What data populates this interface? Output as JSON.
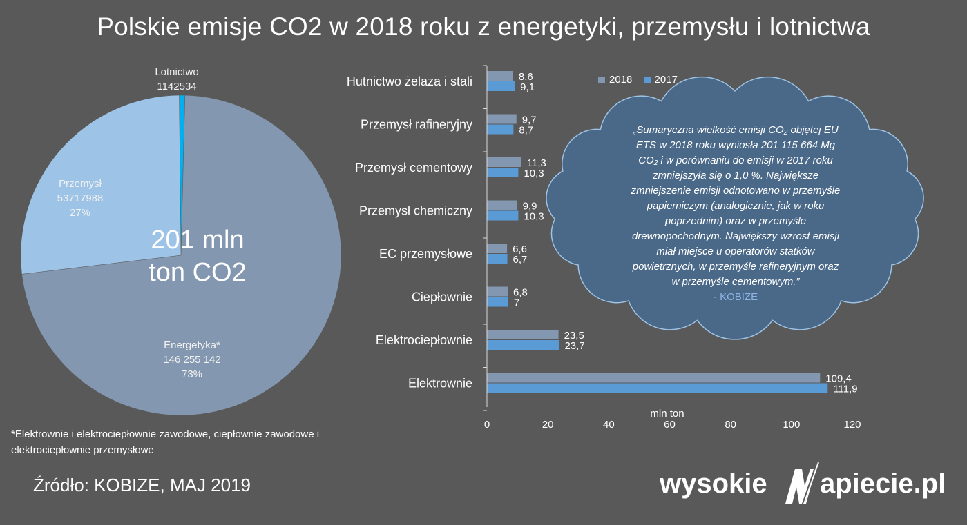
{
  "title": "Polskie emisje CO2  w 2018 roku z energetyki, przemysłu i lotnictwa",
  "colors": {
    "background": "#595959",
    "pie_energetyka": "#8497b0",
    "pie_przemysl": "#9dc3e6",
    "pie_lotnictwo": "#00b0f0",
    "bar_2018": "#8497b0",
    "bar_2017": "#5b9bd5",
    "cloud": "#4a6888"
  },
  "chart_data": [
    {
      "type": "pie",
      "center_label": [
        "201 mln",
        "ton CO2"
      ],
      "slices": [
        {
          "name": "Energetyka*",
          "value": 146255142,
          "value_label": "146 255 142",
          "percent_label": "73%"
        },
        {
          "name": "Przemysł",
          "value": 53717988,
          "value_label": "53717988",
          "percent_label": "27%"
        },
        {
          "name": "Lotnictwo",
          "value": 1142534,
          "value_label": "1142534",
          "percent_label": ""
        }
      ]
    },
    {
      "type": "bar",
      "orientation": "horizontal",
      "categories": [
        "Hutnictwo żelaza i stali",
        "Przemysł rafineryjny",
        "Przemysł cementowy",
        "Przemysł chemiczny",
        "EC przemysłowe",
        "Ciepłownie",
        "Elektrociepłownie",
        "Elektrownie"
      ],
      "series": [
        {
          "name": "2018",
          "values": [
            8.6,
            9.7,
            11.3,
            9.9,
            6.6,
            6.8,
            23.5,
            109.4
          ],
          "labels": [
            "8,6",
            "9,7",
            "11,3",
            "9,9",
            "6,6",
            "6,8",
            "23,5",
            "109,4"
          ]
        },
        {
          "name": "2017",
          "values": [
            9.1,
            8.7,
            10.3,
            10.3,
            6.7,
            7,
            23.7,
            111.9
          ],
          "labels": [
            "9,1",
            "8,7",
            "10,3",
            "10,3",
            "6,7",
            "7",
            "23,7",
            "111,9"
          ]
        }
      ],
      "xlabel": "mln ton",
      "xlim": [
        0,
        120
      ],
      "xticks": [
        0,
        20,
        40,
        60,
        80,
        100,
        120
      ],
      "legend": "top"
    }
  ],
  "quote": {
    "lines": [
      "„Sumaryczna wielkość emisji CO₂ objętej EU",
      "ETS w 2018 roku wyniosła 201 115 664 Mg",
      "CO₂ i w porównaniu do emisji w 2017 roku",
      "zmniejszyła się o 1,0 %. Największe",
      "zmniejszenie emisji odnotowano w przemyśle",
      "papierniczym (analogicznie, jak w roku",
      "poprzednim) oraz w przemyśle",
      "drewnopochodnym. Największy wzrost emisji",
      "miał miejsce u operatorów statków",
      "powietrznych, w przemyśle rafineryjnym oraz",
      "w przemyśle cementowym.”"
    ],
    "author": "- KOBIZE"
  },
  "footnote": "*Elektrownie i elektrociepłownie zawodowe, ciepłownie zawodowe i elektrociepłownie przemysłowe",
  "source": "Źródło: KOBIZE, MAJ 2019",
  "logo": {
    "left": "wysokie",
    "right": "apiecie.pl",
    "icon": "lightning-n-icon"
  }
}
